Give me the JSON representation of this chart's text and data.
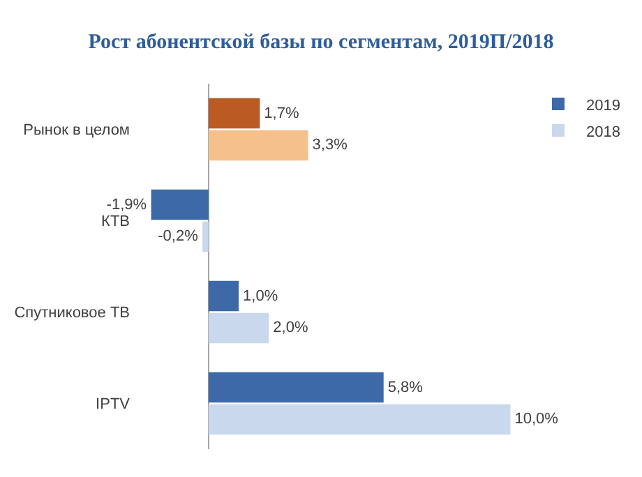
{
  "chart_data": {
    "type": "bar",
    "orientation": "horizontal",
    "title": "Рост абонентской базы по сегментам, 2019П/2018",
    "categories": [
      "Рынок в целом",
      "КТВ",
      "Спутниковое ТВ",
      "IPTV"
    ],
    "series": [
      {
        "name": "2019",
        "color": "#3d69a8",
        "colors": [
          "#b95b22",
          "#3d69a8",
          "#3d69a8",
          "#3d69a8"
        ],
        "values": [
          1.7,
          -1.9,
          1.0,
          5.8
        ],
        "value_labels": [
          "1,7%",
          "-1,9%",
          "1,0%",
          "5,8%"
        ]
      },
      {
        "name": "2018",
        "color": "#c9d8ec",
        "colors": [
          "#f6c08c",
          "#c9d8ec",
          "#c9d8ec",
          "#c9d8ec"
        ],
        "values": [
          3.3,
          -0.2,
          2.0,
          10.0
        ],
        "value_labels": [
          "3,3%",
          "-0,2%",
          "2,0%",
          "10,0%"
        ]
      }
    ],
    "legend": "top right",
    "grid": false
  }
}
